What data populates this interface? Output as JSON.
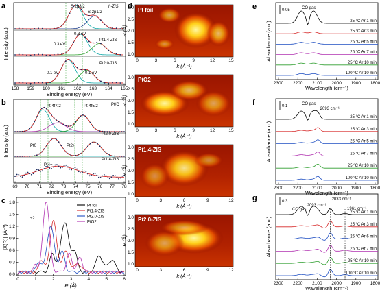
{
  "panels": {
    "a": {
      "label": "a",
      "xlabel": "Binding energy (eV)",
      "ylabel": "Intensity (a.u.)",
      "xticks": [
        "158",
        "159",
        "160",
        "161",
        "162",
        "163",
        "164",
        "165"
      ],
      "annotations": [
        "S 2p3/2",
        "S 2p1/2",
        "h-ZIS",
        "0.3 eV",
        "Pt1.4-ZIS",
        "0.3 eV",
        "Pt2.0-ZIS",
        "0.1 eV",
        "0.1 eV"
      ],
      "colors": {
        "data": "#1a2a5e",
        "fit": "#d62828",
        "c1": "#0aa6a6",
        "c2": "#1a3a8a",
        "c3": "#2ea02e"
      }
    },
    "b": {
      "label": "b",
      "xlabel": "Binding energy (eV)",
      "ylabel": "Intensity (a.u.)",
      "xticks": [
        "69",
        "70",
        "71",
        "72",
        "73",
        "74",
        "75",
        "76",
        "77",
        "78"
      ],
      "annotations": [
        "Pt 4f7/2",
        "Pt 4f5/2",
        "Pt/C",
        "Pt0",
        "Pt2+",
        "Pt2.0-ZIS",
        "Pt4+",
        "Pt1.4-ZIS"
      ]
    },
    "c": {
      "label": "c",
      "xlabel": "R (Å)",
      "ylabel": "|X(R)| (Å⁻³)",
      "xticks": [
        "0",
        "1",
        "2",
        "3",
        "4",
        "5",
        "6"
      ],
      "yticks": [
        "0.0",
        "0.3",
        "0.6",
        "0.9",
        "1.2",
        "1.5",
        "1.8"
      ],
      "legend": [
        {
          "name": "Pt foil",
          "color": "#000000"
        },
        {
          "name": "Pt1.4-ZIS",
          "color": "#d62828"
        },
        {
          "name": "Pt2.0-ZIS",
          "color": "#1f4fc2"
        },
        {
          "name": "PtO2",
          "color": "#b030b0"
        }
      ],
      "annotation": "÷2"
    },
    "d": {
      "label": "d",
      "maps": [
        {
          "title": "Pt foil",
          "xticks": [
            "0",
            "3",
            "6",
            "9",
            "12",
            "15"
          ]
        },
        {
          "title": "PtO2",
          "xticks": [
            "0",
            "3",
            "6",
            "9",
            "12",
            "15"
          ]
        },
        {
          "title": "Pt1.4-ZIS",
          "xticks": [
            "0",
            "3",
            "6",
            "9",
            "12"
          ]
        },
        {
          "title": "Pt2.0-ZIS",
          "xticks": [
            "0",
            "3",
            "6",
            "9",
            "12"
          ]
        }
      ],
      "ylabel": "R (Å)",
      "xlabel": "k (Å⁻¹)",
      "yticks": [
        "1.0",
        "1.5",
        "2.0",
        "2.5",
        "3.0"
      ]
    },
    "e": {
      "label": "e",
      "scale": "0.05",
      "gas": "CO gas",
      "rows": [
        "25 °C Ar 1 min",
        "25 °C Ar 3 min",
        "25 °C Ar 5 min",
        "25 °C Ar 7 min",
        "25 °C Ar 10 min",
        "100 °C Ar 10 min"
      ]
    },
    "f": {
      "label": "f",
      "scale": "0.1",
      "gas": "CO gas",
      "peak": "2093 cm⁻¹",
      "rows": [
        "25 °C Ar 1 min",
        "25 °C Ar 3 min",
        "25 °C Ar 5 min",
        "25 °C Ar 7 min",
        "25 °C Ar 10 min",
        "100 °C Ar 10 min"
      ]
    },
    "g": {
      "label": "g",
      "scale": "0.3",
      "gas": "CO gas",
      "peaks": [
        "2093 cm⁻¹",
        "2033 cm⁻¹",
        "1961 cm⁻¹"
      ],
      "rows": [
        "25 °C Ar 1 min",
        "25 °C Ar 3 min",
        "25 °C Ar 6 min",
        "25 °C Ar 7 min",
        "25 °C Ar 10 min",
        "100 °C Ar 10 min"
      ]
    },
    "ir": {
      "xlabel": "Wavelength (cm⁻¹)",
      "ylabel": "Absorbance (a.u.)",
      "xticks": [
        "2300",
        "2200",
        "2100",
        "2000",
        "1900",
        "1800"
      ],
      "series_colors": [
        "#000000",
        "#d62828",
        "#1f4fc2",
        "#b030b0",
        "#2e9e2e",
        "#1f4fc2"
      ]
    }
  }
}
